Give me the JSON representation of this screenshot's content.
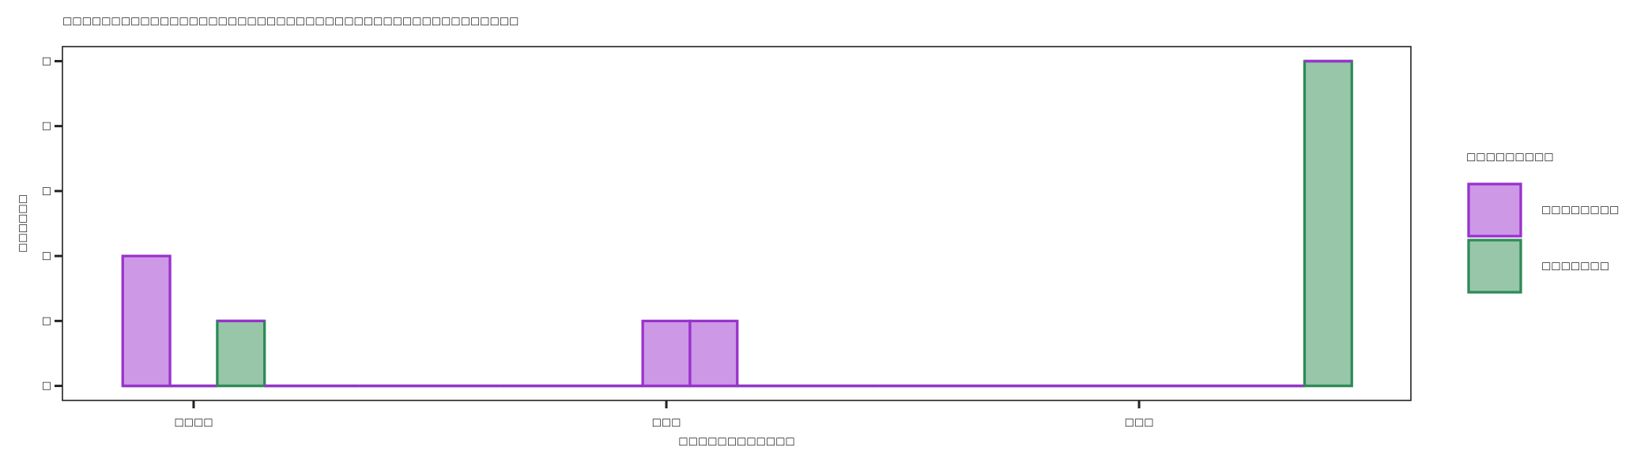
{
  "chart_data": {
    "type": "histogram",
    "title": "□□□□□□□□□□□□□□□□□□□□□□□□□□□□□□□□□□□□□□□□□□□□□□□",
    "xlabel": "□□□□□□□□□□□□",
    "ylabel": "□□□□□□",
    "legend_title": "□□□□□□□□□",
    "bins": [
      -0.15,
      -0.05,
      0.05,
      0.15,
      0.25,
      0.35,
      0.45,
      0.55,
      0.65,
      0.75,
      0.85,
      0.95,
      1.05,
      1.15,
      1.25,
      1.35,
      1.45,
      1.55,
      1.65,
      1.75,
      1.85,
      1.95,
      2.05,
      2.15,
      2.25,
      2.35,
      2.45
    ],
    "series": [
      {
        "name": "□□□□□□□□",
        "color": "#cd98e6",
        "edge": "#9932cc",
        "values": [
          2,
          0,
          0,
          0,
          0,
          0,
          0,
          0,
          0,
          0,
          0,
          1,
          1,
          0,
          0,
          0,
          0,
          0,
          0,
          0,
          0,
          0,
          0,
          0,
          0,
          0
        ]
      },
      {
        "name": "□□□□□□□",
        "color": "#98c6a8",
        "edge": "#2e8b57",
        "values": [
          0,
          0,
          1,
          0,
          0,
          0,
          0,
          0,
          0,
          0,
          0,
          0,
          0,
          0,
          0,
          0,
          0,
          0,
          0,
          0,
          0,
          0,
          0,
          0,
          0,
          5
        ]
      }
    ],
    "stack_order": [
      1,
      0
    ],
    "xlim": [
      -0.2775,
      2.575
    ],
    "xticks": [
      {
        "value": 0,
        "label": "□□□□"
      },
      {
        "value": 1,
        "label": "□□□"
      },
      {
        "value": 2,
        "label": "□□□"
      }
    ],
    "ylim": [
      -0.224,
      5.224
    ],
    "yticks": [
      {
        "value": 0,
        "label": "□"
      },
      {
        "value": 1,
        "label": "□"
      },
      {
        "value": 2,
        "label": "□"
      },
      {
        "value": 3,
        "label": "□"
      },
      {
        "value": 4,
        "label": "□"
      },
      {
        "value": 5,
        "label": "□"
      }
    ]
  }
}
